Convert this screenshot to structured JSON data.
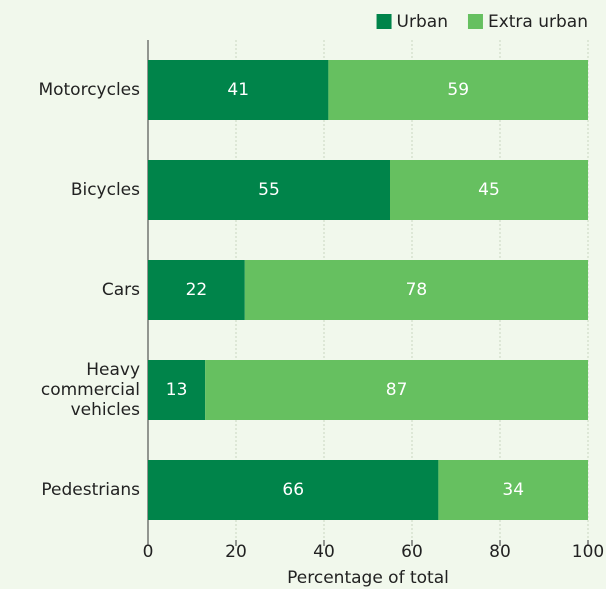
{
  "chart_data": {
    "type": "stacked_barh",
    "categories": [
      "Motorcycles",
      "Bicycles",
      "Cars",
      "Heavy commercial vehicles",
      "Pedestrians"
    ],
    "series": [
      {
        "name": "Urban",
        "color": "#00844a",
        "values": [
          41,
          55,
          22,
          13,
          66
        ]
      },
      {
        "name": "Extra urban",
        "color": "#66c060",
        "values": [
          59,
          45,
          78,
          87,
          34
        ]
      }
    ],
    "xlabel": "Percentage of total",
    "xlim": [
      0,
      100
    ],
    "xticks": [
      0,
      20,
      40,
      60,
      80,
      100
    ],
    "grid": true,
    "legend": "top-right"
  }
}
